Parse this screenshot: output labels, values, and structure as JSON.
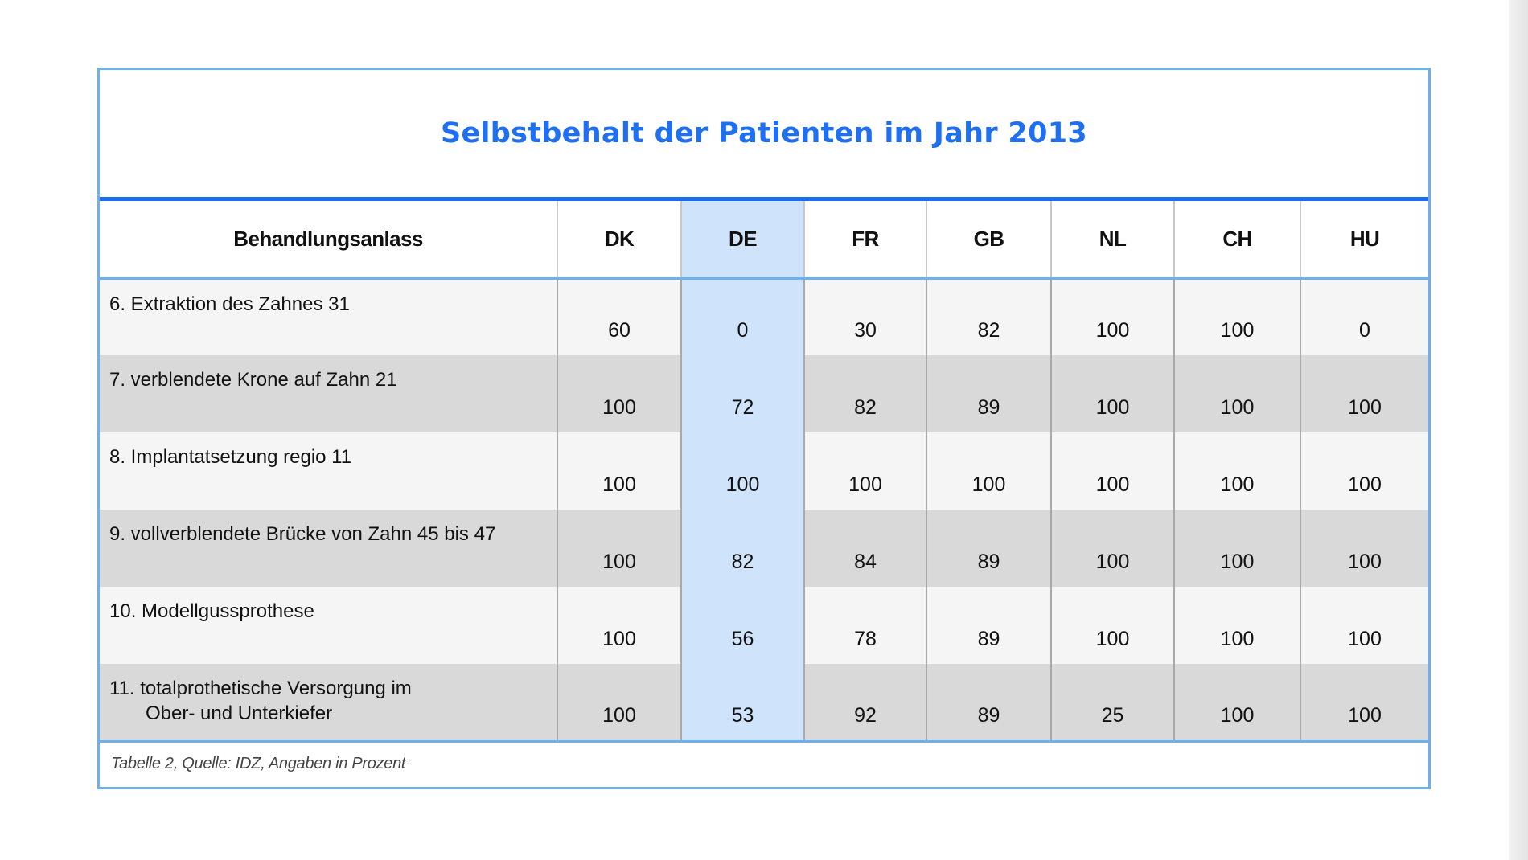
{
  "chart_data": {
    "type": "table",
    "title": "Selbstbehalt der Patienten im Jahr 2013",
    "columns": [
      "Behandlungsanlass",
      "DK",
      "DE",
      "FR",
      "GB",
      "NL",
      "CH",
      "HU"
    ],
    "highlight_column": "DE",
    "rows": [
      {
        "label": [
          "6. Extraktion des Zahnes 31"
        ],
        "values": [
          "60",
          "0",
          "30",
          "82",
          "100",
          "100",
          "0"
        ]
      },
      {
        "label": [
          "7. verblendete Krone auf Zahn 21"
        ],
        "values": [
          "100",
          "72",
          "82",
          "89",
          "100",
          "100",
          "100"
        ]
      },
      {
        "label": [
          "8. Implantatsetzung regio 11"
        ],
        "values": [
          "100",
          "100",
          "100",
          "100",
          "100",
          "100",
          "100"
        ]
      },
      {
        "label": [
          "9. vollverblendete Brücke von Zahn 45 bis 47"
        ],
        "values": [
          "100",
          "82",
          "84",
          "89",
          "100",
          "100",
          "100"
        ]
      },
      {
        "label": [
          "10. Modellgussprothese"
        ],
        "values": [
          "100",
          "56",
          "78",
          "89",
          "100",
          "100",
          "100"
        ]
      },
      {
        "label": [
          "11. totalprothetische Versorgung im",
          "Ober- und Unterkiefer"
        ],
        "values": [
          "100",
          "53",
          "92",
          "89",
          "25",
          "100",
          "100"
        ]
      }
    ],
    "footnote": "Tabelle 2, Quelle: IDZ, Angaben in Prozent"
  },
  "colors": {
    "title": "#1f6ff2",
    "frame": "#6fb0ec",
    "title_rule": "#1a6df0",
    "highlight": "#cfe3fb",
    "row_light": "#f5f5f5",
    "row_dark": "#d9d9d9"
  }
}
